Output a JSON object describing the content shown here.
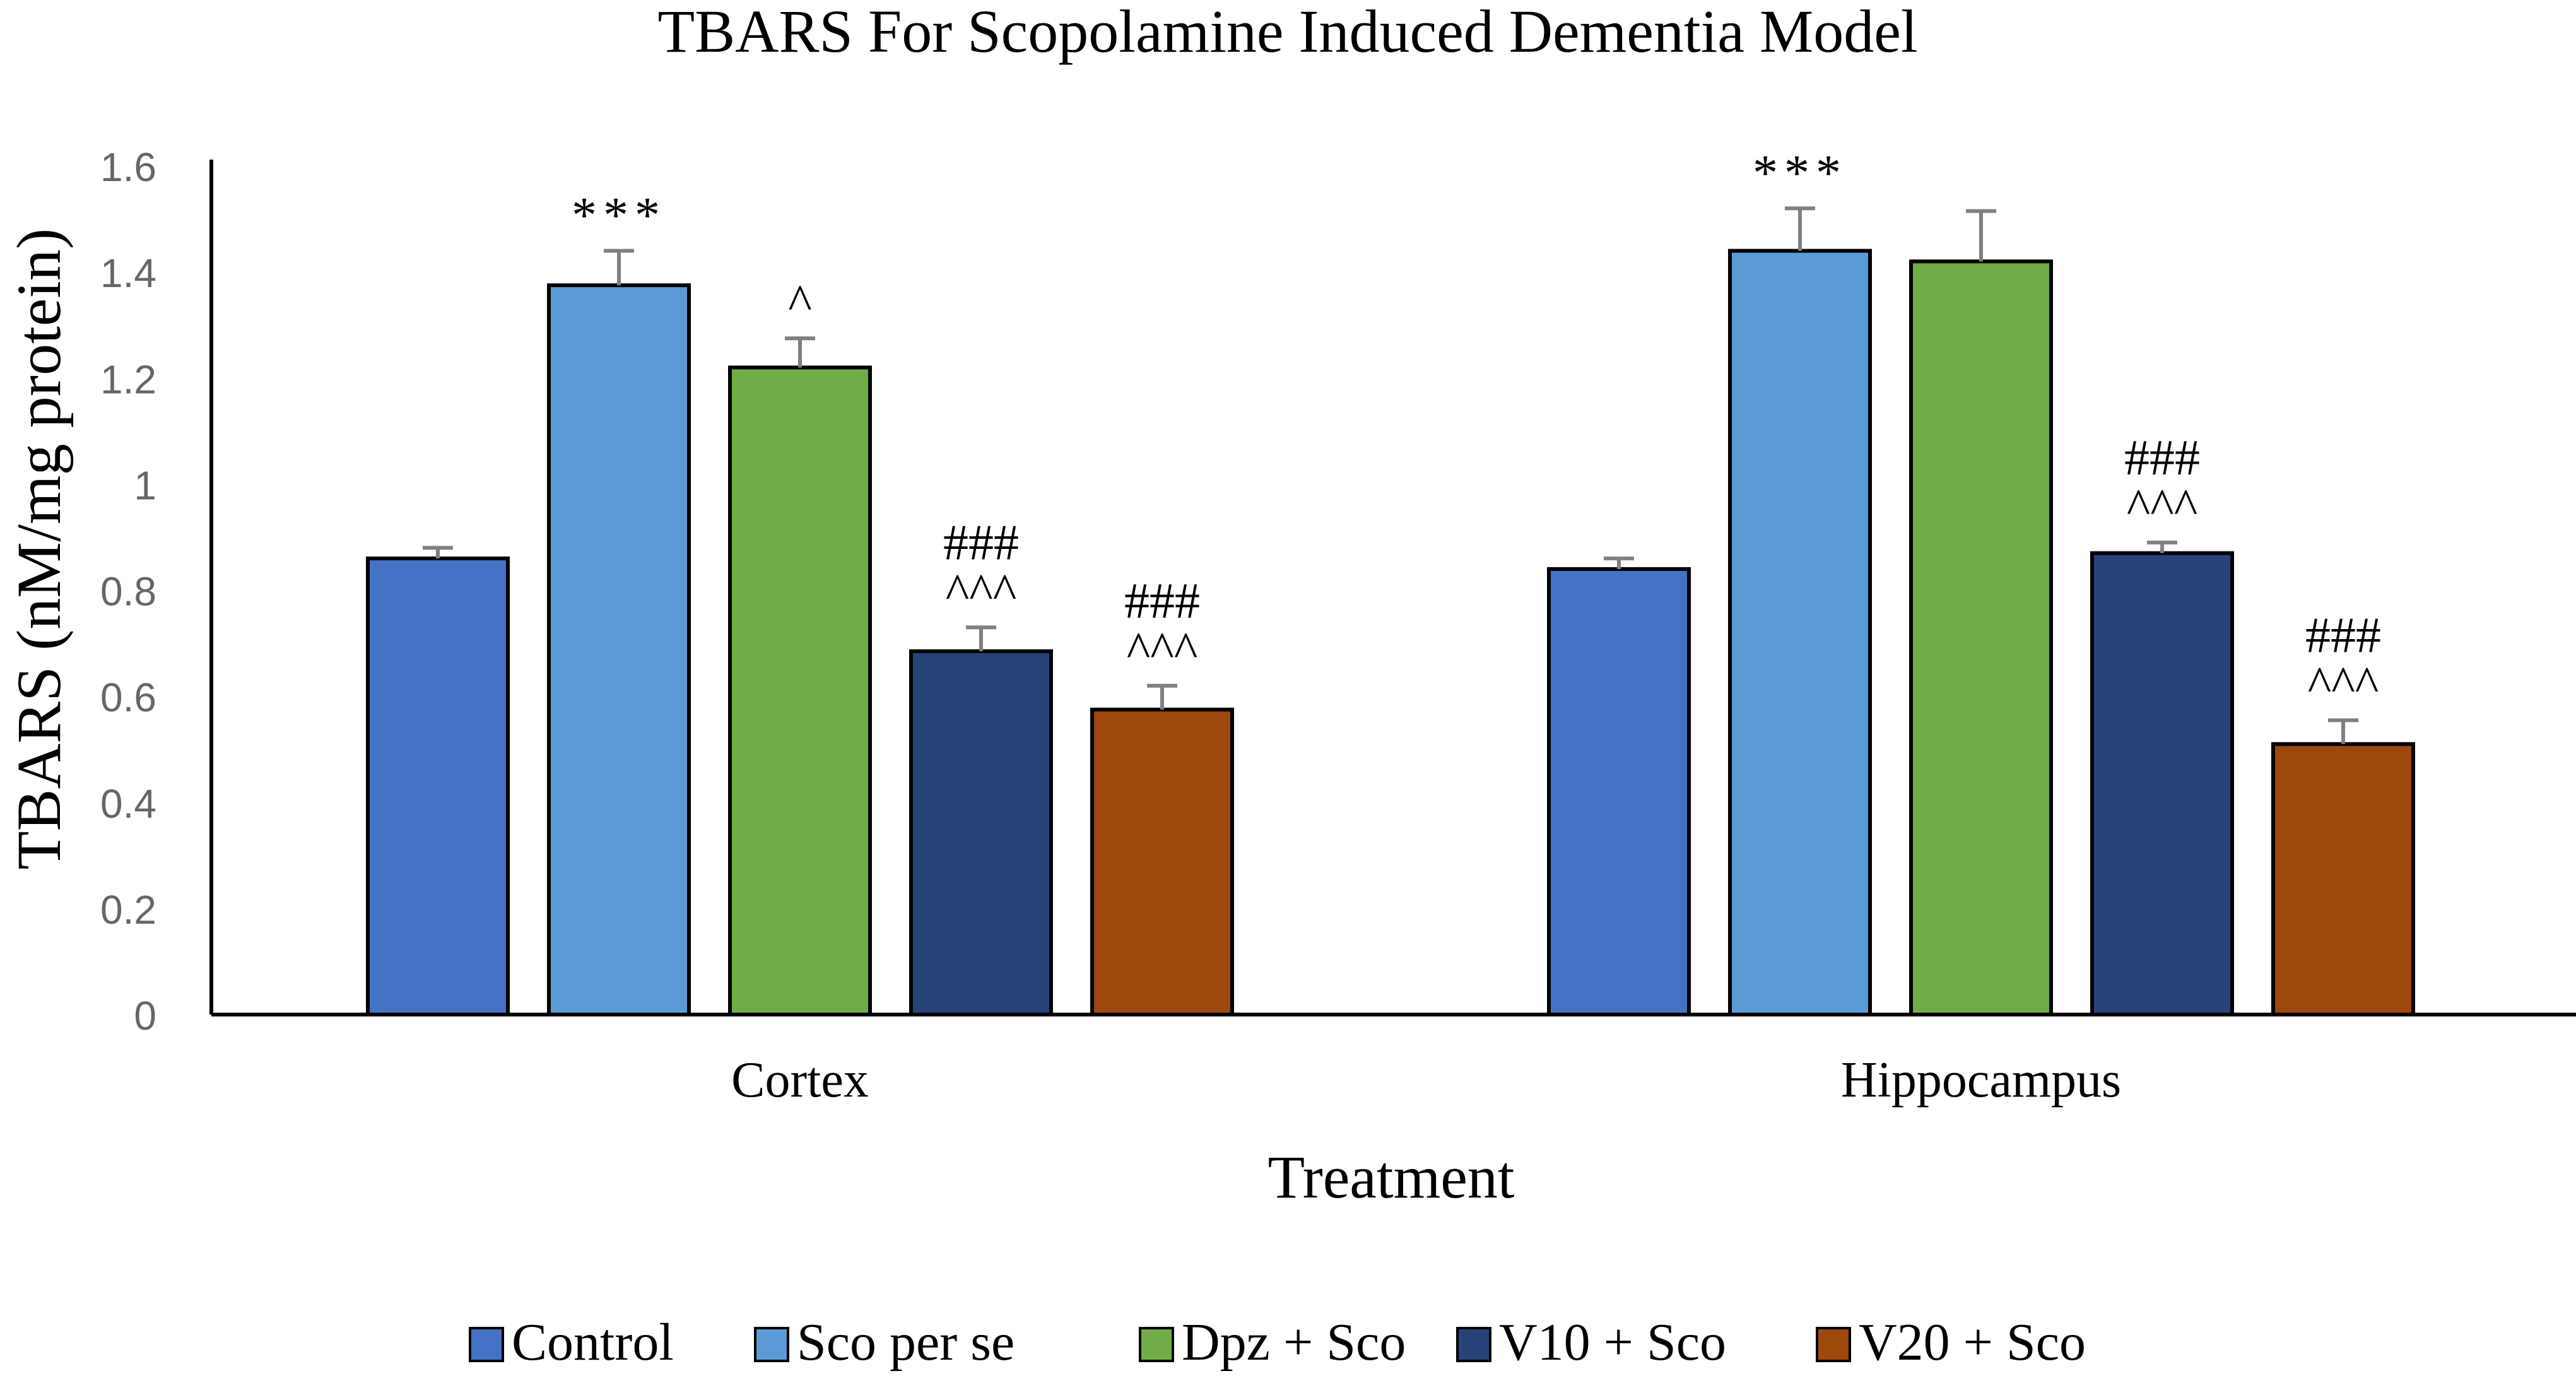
{
  "chart_data": {
    "type": "bar",
    "title": "TBARS For Scopolamine  Induced Dementia Model",
    "xlabel": "Treatment",
    "ylabel": "TBARS (nM/mg protein)",
    "ylim": [
      0,
      1.6
    ],
    "yticks": [
      0,
      0.2,
      0.4,
      0.6,
      0.8,
      1,
      1.2,
      1.4,
      1.6
    ],
    "ytick_labels": [
      "0",
      "0.2",
      "0.4",
      "0.6",
      "0.8",
      "1",
      "1.2",
      "1.4",
      "1.6"
    ],
    "categories": [
      "Cortex",
      "Hippocampus"
    ],
    "legend_position": "bottom",
    "grid": false,
    "series": [
      {
        "name": "Control",
        "color": "#4472C4",
        "values": [
          0.86,
          0.84
        ],
        "errors": [
          0.02,
          0.02
        ],
        "annotations": [
          "",
          ""
        ]
      },
      {
        "name": "Sco per se",
        "color": "#5B9BD5",
        "values": [
          1.375,
          1.44
        ],
        "errors": [
          0.065,
          0.08
        ],
        "annotations": [
          "***",
          "***"
        ]
      },
      {
        "name": "Dpz + Sco",
        "color": "#70AD47",
        "values": [
          1.22,
          1.42
        ],
        "errors": [
          0.055,
          0.095
        ],
        "annotations": [
          "^",
          ""
        ]
      },
      {
        "name": "V10 + Sco",
        "color": "#264478",
        "values": [
          0.685,
          0.87
        ],
        "errors": [
          0.045,
          0.02
        ],
        "annotations": [
          "###\n^^^",
          "###\n^^^"
        ]
      },
      {
        "name": "V20 + Sco",
        "color": "#9E480E",
        "values": [
          0.575,
          0.51
        ],
        "errors": [
          0.045,
          0.045
        ],
        "annotations": [
          "###\n^^^",
          "###\n^^^"
        ]
      }
    ]
  }
}
